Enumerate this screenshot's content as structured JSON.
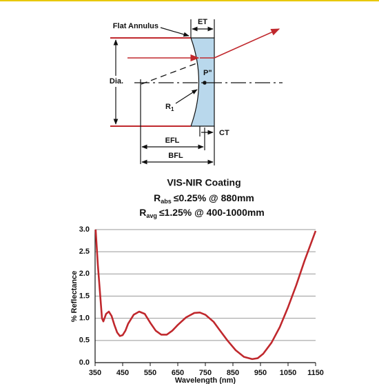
{
  "diagram": {
    "flat_annulus": "Flat Annulus",
    "et": "ET",
    "dia": "Dia.",
    "p": "P\"",
    "r1": {
      "symbol": "R",
      "subscript": "1"
    },
    "efl": "EFL",
    "bfl": "BFL",
    "ct": "CT"
  },
  "chart_data": {
    "type": "line",
    "title": "VIS-NIR Coating",
    "subtitle": [
      {
        "symbol": "R",
        "subscript": "abs",
        "text": "≤0.25% @ 880mm"
      },
      {
        "symbol": "R",
        "subscript": "avg",
        "text": "≤1.25% @ 400-1000mm"
      }
    ],
    "x_label": "Wavelength (nm)",
    "y_label": "% Reflectance",
    "x": [
      352,
      360,
      370,
      375,
      380,
      390,
      400,
      410,
      420,
      430,
      440,
      450,
      460,
      470,
      490,
      510,
      530,
      550,
      570,
      590,
      610,
      630,
      650,
      680,
      710,
      730,
      750,
      780,
      800,
      830,
      860,
      890,
      920,
      940,
      960,
      990,
      1020,
      1050,
      1080,
      1110,
      1150
    ],
    "series": [
      {
        "name": "Reflectance",
        "color": "#c0282d",
        "values": [
          3.0,
          2.2,
          1.4,
          1.0,
          0.93,
          1.1,
          1.15,
          1.05,
          0.85,
          0.68,
          0.6,
          0.62,
          0.72,
          0.88,
          1.08,
          1.15,
          1.1,
          0.9,
          0.72,
          0.63,
          0.63,
          0.72,
          0.85,
          1.02,
          1.12,
          1.13,
          1.08,
          0.92,
          0.75,
          0.5,
          0.28,
          0.13,
          0.08,
          0.1,
          0.2,
          0.45,
          0.8,
          1.25,
          1.75,
          2.3,
          2.97
        ]
      }
    ],
    "xlim": [
      350,
      1150
    ],
    "xticks": [
      350,
      450,
      550,
      650,
      750,
      850,
      950,
      1050,
      1150
    ],
    "ylim": [
      0,
      3
    ],
    "yticks": [
      {
        "value": 0,
        "label": "0.0"
      },
      {
        "value": 0.5,
        "label": "0.5"
      },
      {
        "value": 1,
        "label": "1.0"
      },
      {
        "value": 1.5,
        "label": "1.5"
      },
      {
        "value": 2,
        "label": "2.0"
      },
      {
        "value": 2.5,
        "label": "2.5"
      },
      {
        "value": 3,
        "label": "3.0"
      }
    ],
    "grid": true
  }
}
